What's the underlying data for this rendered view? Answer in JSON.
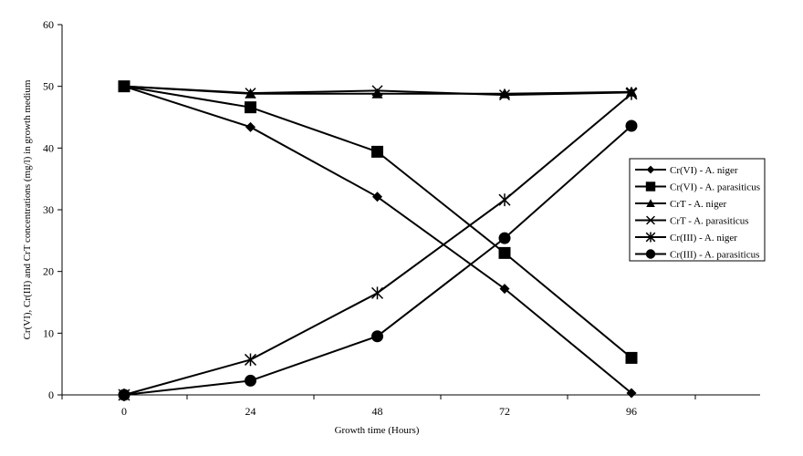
{
  "chart_data": {
    "type": "line",
    "title": "",
    "xlabel": "Growth time (Hours)",
    "ylabel": "Cr(VI), Cr(III) and CrT concentrations (mg/l) in growth medium",
    "x": [
      0,
      24,
      48,
      72,
      96
    ],
    "xticks": [
      "0",
      "24",
      "48",
      "72",
      "96"
    ],
    "yticks": [
      "0",
      "10",
      "20",
      "30",
      "40",
      "50",
      "60"
    ],
    "ylim": [
      0,
      60
    ],
    "grid": false,
    "legend_position": "right",
    "series": [
      {
        "name": "Cr(VI) - A. niger",
        "marker": "diamond",
        "values": [
          50,
          43.4,
          32.1,
          17.2,
          0.3
        ]
      },
      {
        "name": "Cr(VI) - A. parasiticus",
        "marker": "square",
        "values": [
          50,
          46.6,
          39.4,
          23,
          6
        ]
      },
      {
        "name": "CrT - A. niger",
        "marker": "triangle",
        "values": [
          50,
          48.8,
          48.8,
          48.8,
          49.1
        ]
      },
      {
        "name": "CrT - A. parasiticus",
        "marker": "x",
        "values": [
          50,
          48.9,
          49.3,
          48.6,
          49
        ]
      },
      {
        "name": "Cr(III) - A. niger",
        "marker": "star",
        "values": [
          0,
          5.7,
          16.5,
          31.6,
          48.8
        ]
      },
      {
        "name": "Cr(III) - A. parasiticus",
        "marker": "circle",
        "values": [
          0,
          2.3,
          9.5,
          25.4,
          43.6
        ]
      }
    ],
    "colors": {
      "line": "#000000",
      "marker": "#000000",
      "background": "#ffffff"
    }
  }
}
